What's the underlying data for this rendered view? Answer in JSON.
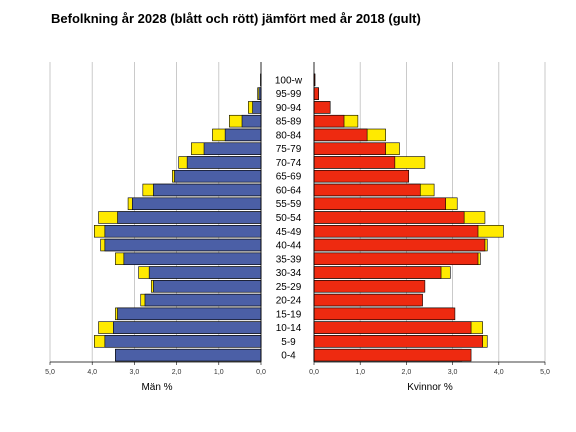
{
  "chart_data": {
    "type": "bar",
    "title": "Befolkning år 2028 (blått och rött) jämfört med år 2018 (gult)",
    "xlabel_left": "Män %",
    "xlabel_right": "Kvinnor %",
    "xlim": [
      0,
      5
    ],
    "x_ticks": [
      "5,0",
      "4,0",
      "3,0",
      "2,0",
      "1,0",
      "0,0"
    ],
    "x_ticks_right": [
      "0,0",
      "1,0",
      "2,0",
      "3,0",
      "4,0",
      "5,0"
    ],
    "categories": [
      "0-4",
      "5-9",
      "10-14",
      "15-19",
      "20-24",
      "25-29",
      "30-34",
      "35-39",
      "40-44",
      "45-49",
      "50-54",
      "55-59",
      "60-64",
      "65-69",
      "70-74",
      "75-79",
      "80-84",
      "85-89",
      "90-94",
      "95-99",
      "100-w"
    ],
    "series": [
      {
        "name": "Män 2028",
        "values": [
          3.45,
          3.7,
          3.5,
          3.4,
          2.75,
          2.55,
          2.65,
          3.25,
          3.7,
          3.7,
          3.4,
          3.05,
          2.55,
          2.05,
          1.75,
          1.35,
          0.85,
          0.45,
          0.2,
          0.05,
          0.01
        ]
      },
      {
        "name": "Män 2018",
        "values": [
          3.45,
          3.95,
          3.85,
          3.45,
          2.85,
          2.6,
          2.9,
          3.45,
          3.8,
          3.95,
          3.85,
          3.15,
          2.8,
          2.1,
          1.95,
          1.65,
          1.15,
          0.75,
          0.3,
          0.08,
          0.01
        ]
      },
      {
        "name": "Kvinnor 2028",
        "values": [
          3.4,
          3.65,
          3.4,
          3.05,
          2.35,
          2.4,
          2.75,
          3.55,
          3.7,
          3.55,
          3.25,
          2.85,
          2.3,
          2.05,
          1.75,
          1.55,
          1.15,
          0.65,
          0.35,
          0.1,
          0.02
        ]
      },
      {
        "name": "Kvinnor 2018",
        "values": [
          3.2,
          3.75,
          3.65,
          3.0,
          2.3,
          2.35,
          2.95,
          3.6,
          3.75,
          4.1,
          3.7,
          3.1,
          2.6,
          2.05,
          2.4,
          1.85,
          1.55,
          0.95,
          0.35,
          0.1,
          0.02
        ]
      }
    ],
    "colors": {
      "men": "#4b5fa6",
      "women": "#ee2a10",
      "ref2018": "#ffea00",
      "outline": "#000000",
      "grid": "#bdbdbd"
    },
    "grid": true
  }
}
